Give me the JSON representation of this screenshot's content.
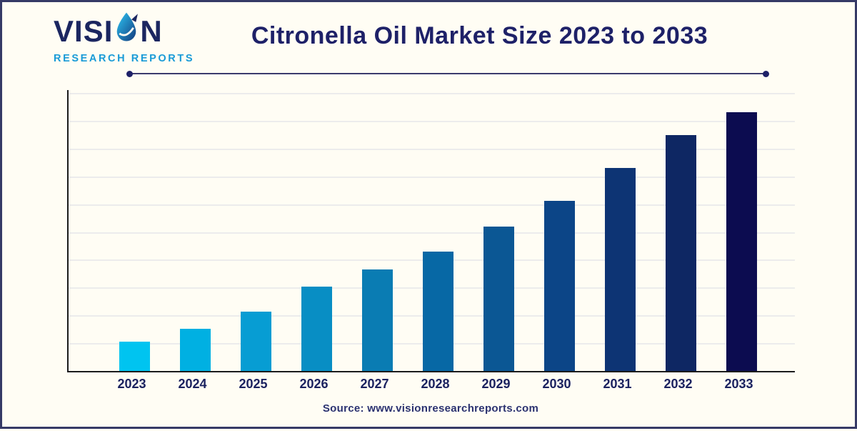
{
  "page": {
    "background_color": "#fffdf4",
    "border_color": "#363a66"
  },
  "header": {
    "logo": {
      "word_left": "VISI",
      "word_right": "N",
      "full_name": "VISION",
      "subtitle": "RESEARCH REPORTS",
      "main_color": "#1b2660",
      "subtitle_color": "#199bd7",
      "drop_icon_colors": [
        "#2ec6f5",
        "#123a7c"
      ]
    },
    "title": "Citronella Oil Market Size 2023 to 2033",
    "title_color": "#1e2168"
  },
  "chart_data": {
    "type": "bar",
    "title": "Citronella Oil Market Size 2023 to 2033",
    "categories": [
      "2023",
      "2024",
      "2025",
      "2026",
      "2027",
      "2028",
      "2029",
      "2030",
      "2031",
      "2032",
      "2033"
    ],
    "values": [
      10.4,
      14.9,
      21.0,
      29.9,
      35.9,
      42.3,
      51.1,
      60.3,
      71.9,
      83.5,
      91.6
    ],
    "values_note": "relative bar heights in % of y-axis span; no numeric y-axis tick labels are shown in the image",
    "bar_colors": [
      "#00c4f0",
      "#00b0e2",
      "#079dd3",
      "#088ec4",
      "#0a7cb3",
      "#0768a5",
      "#0b5794",
      "#0c4587",
      "#0d3474",
      "#0e2763",
      "#0c0c50"
    ],
    "xlabel": "",
    "ylabel": "",
    "ylim": [
      0,
      100
    ],
    "grid": true,
    "gridline_count": 10,
    "gridline_color": "#ececec",
    "axis_color": "#1c1c1c",
    "legend": false
  },
  "footer": {
    "source": "Source: www.visionresearchreports.com"
  }
}
